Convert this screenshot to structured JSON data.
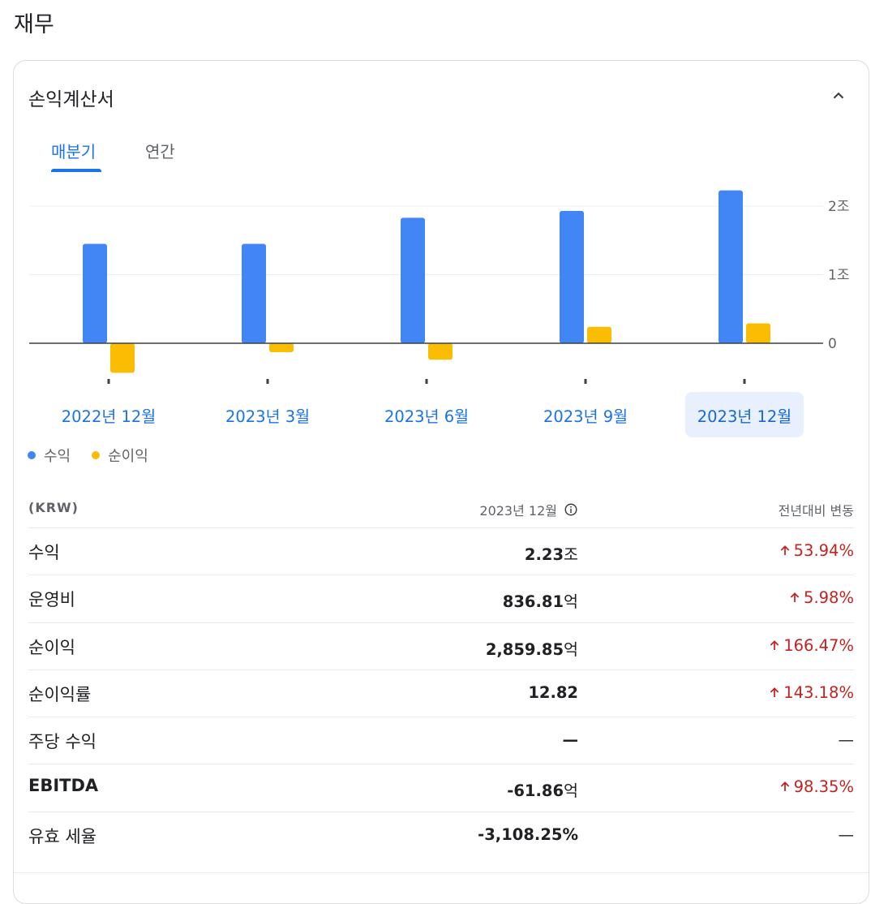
{
  "section_title": "재무",
  "card": {
    "title": "손익계산서"
  },
  "tabs": [
    {
      "label": "매분기"
    },
    {
      "label": "연간"
    }
  ],
  "chart_data": {
    "type": "bar",
    "categories": [
      "2022년 12월",
      "2023년 3월",
      "2023년 6월",
      "2023년 9월",
      "2023년 12월"
    ],
    "series": [
      {
        "name": "수익",
        "values": [
          1.45,
          1.45,
          1.83,
          1.93,
          2.23
        ],
        "color": "#4285f4"
      },
      {
        "name": "순이익",
        "values": [
          -0.43,
          -0.13,
          -0.24,
          0.24,
          0.29
        ],
        "color": "#fbbc04"
      }
    ],
    "ylim": [
      -0.45,
      2.2
    ],
    "yticks": [
      {
        "value": 2,
        "label": "2조"
      },
      {
        "value": 1,
        "label": "1조"
      },
      {
        "value": 0,
        "label": "0"
      }
    ],
    "selected_category": "2023년 12월"
  },
  "legend": [
    {
      "label": "수익",
      "color": "#4285f4"
    },
    {
      "label": "순이익",
      "color": "#fbbc04"
    }
  ],
  "table": {
    "header": {
      "currency": "(KRW)",
      "period": "2023년 12월",
      "change": "전년대비 변동"
    },
    "rows": [
      {
        "name": "수익",
        "value": "2.23",
        "unit": "조",
        "change": "53.94%",
        "dir": "up"
      },
      {
        "name": "운영비",
        "value": "836.81",
        "unit": "억",
        "change": "5.98%",
        "dir": "up"
      },
      {
        "name": "순이익",
        "value": "2,859.85",
        "unit": "억",
        "change": "166.47%",
        "dir": "up"
      },
      {
        "name": "순이익률",
        "value": "12.82",
        "unit": "",
        "change": "143.18%",
        "dir": "up"
      },
      {
        "name": "주당 수익",
        "value": "—",
        "unit": "",
        "change": "—",
        "dir": "none"
      },
      {
        "name": "EBITDA",
        "value": "-61.86",
        "unit": "억",
        "change": "98.35%",
        "dir": "up"
      },
      {
        "name": "유효 세율",
        "value": "-3,108.25%",
        "unit": "",
        "change": "—",
        "dir": "none"
      }
    ]
  }
}
